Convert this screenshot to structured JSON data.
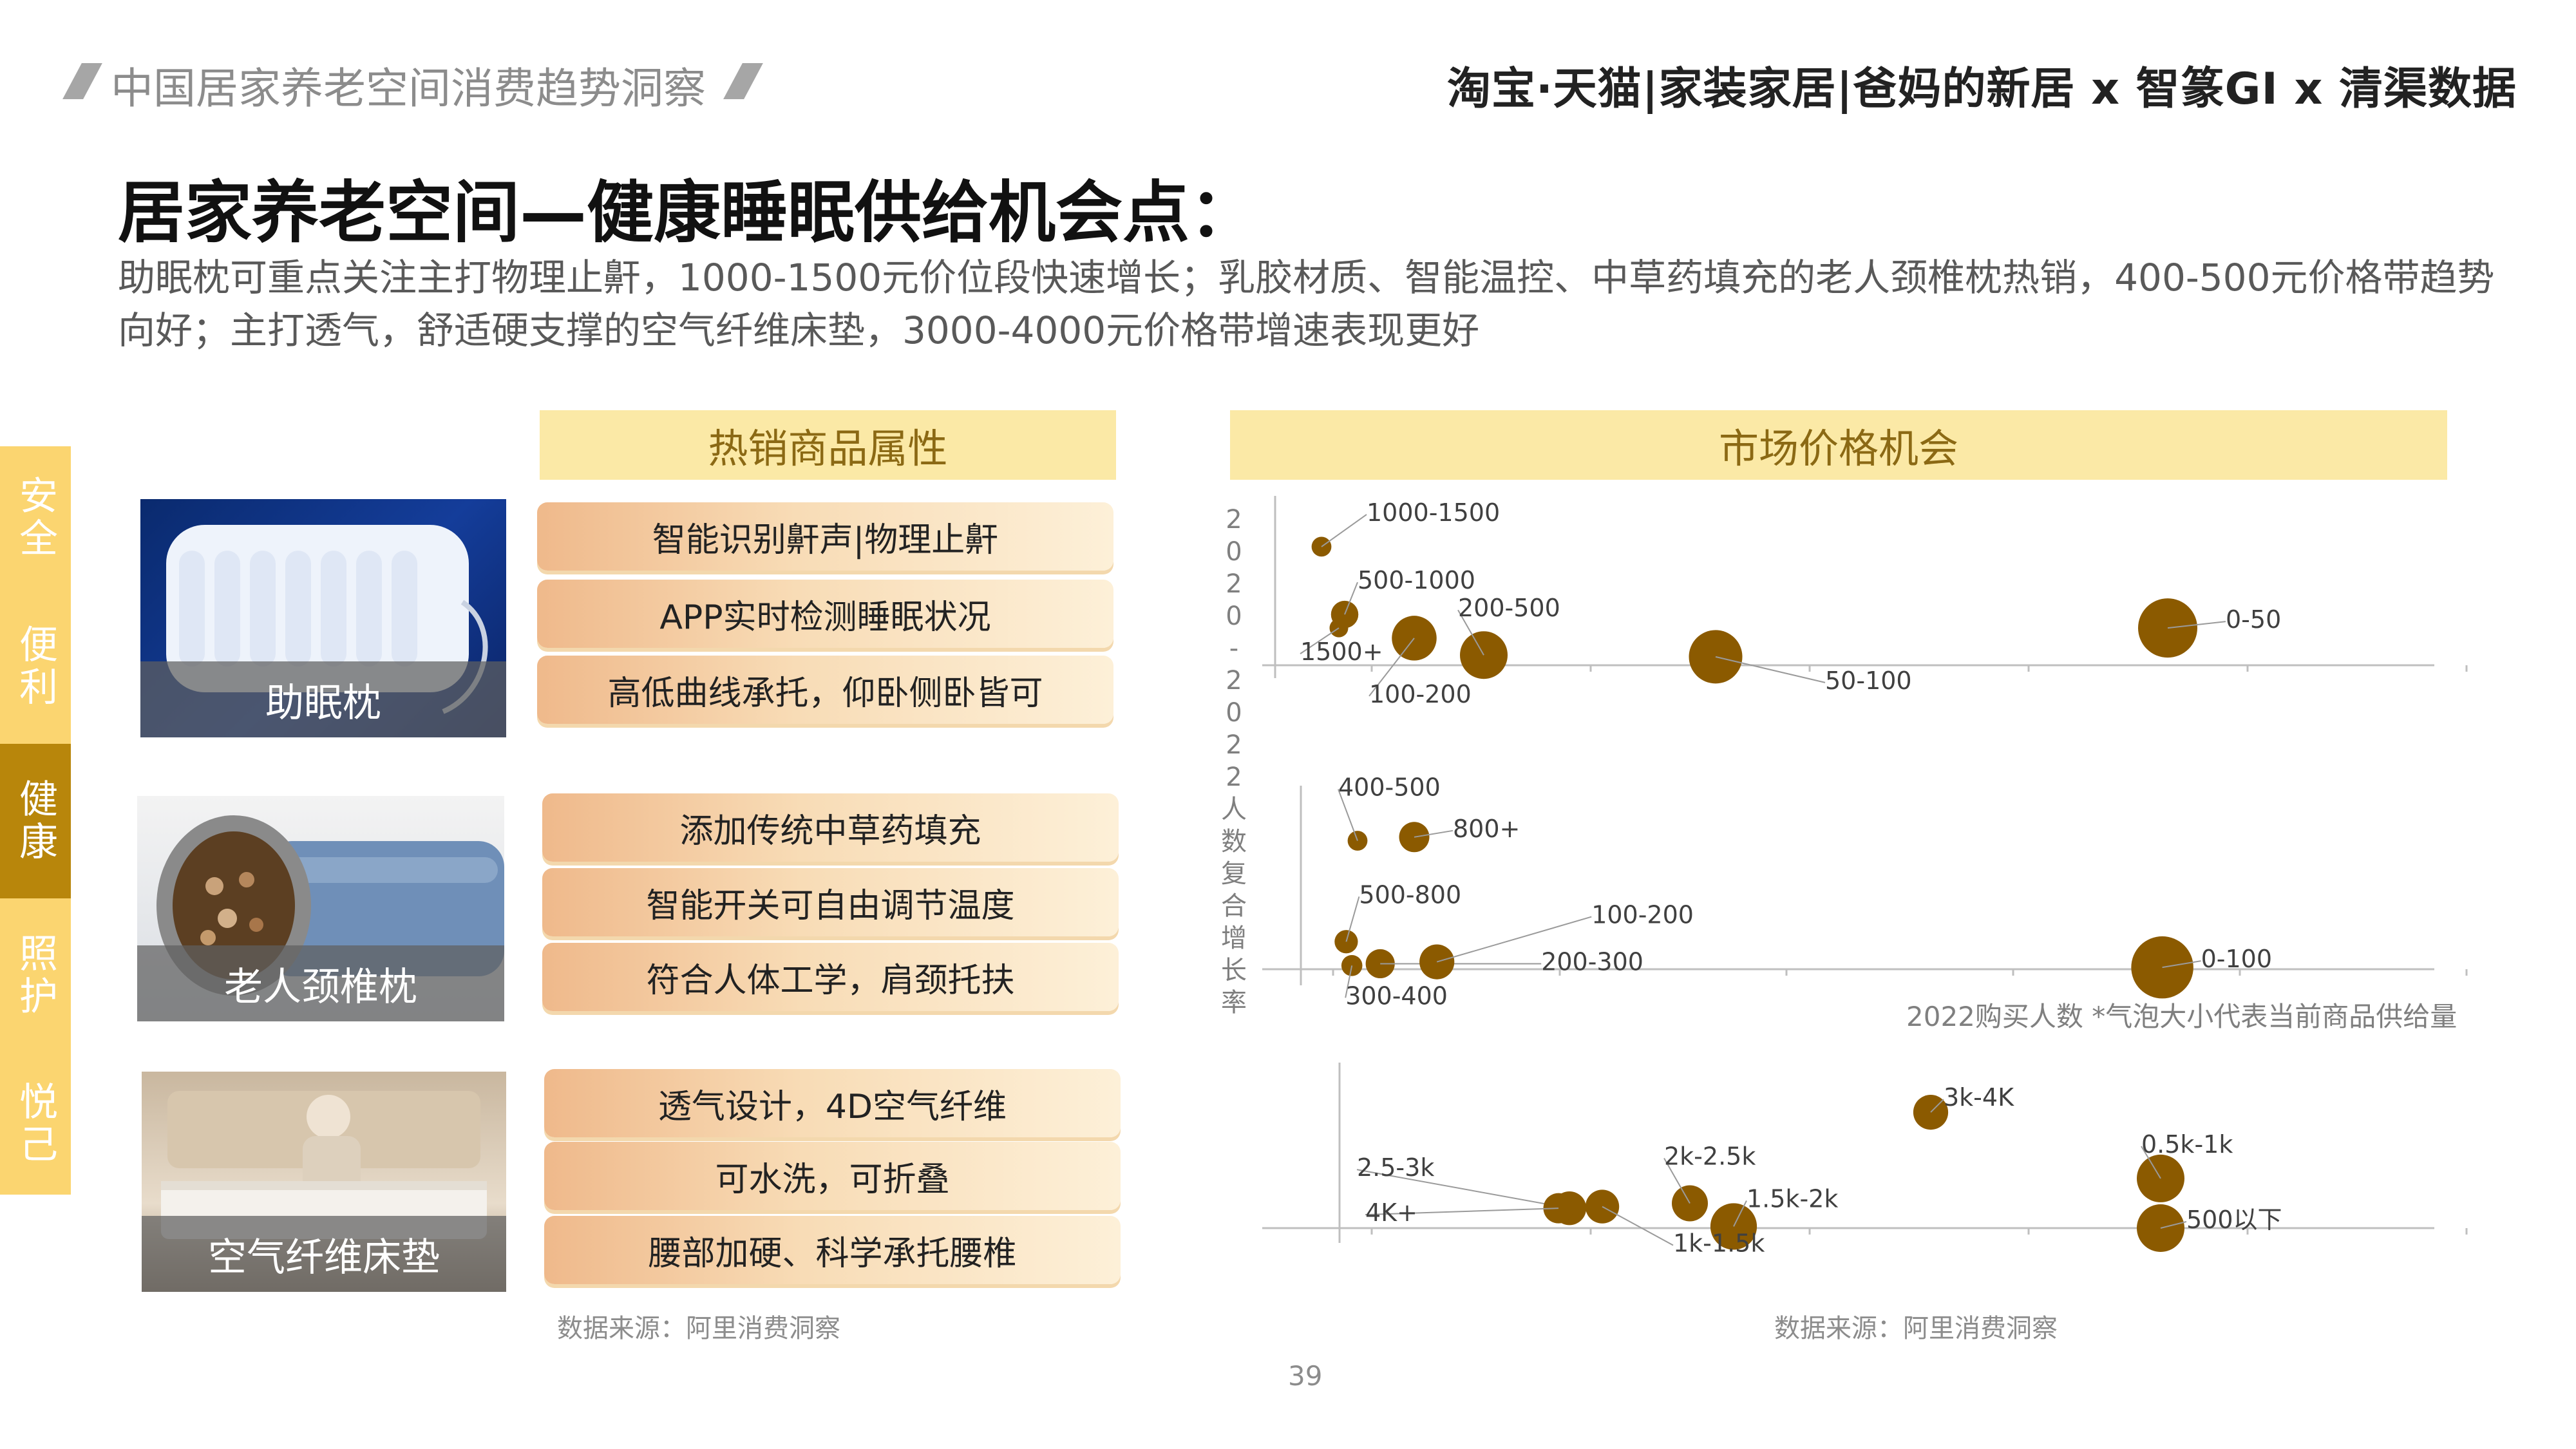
{
  "header": {
    "report_title": "中国居家养老空间消费趋势洞察",
    "brand_line": "淘宝·天猫|家装家居|爸妈的新居 x 智篆GI x 清渠数据"
  },
  "page_title": "居家养老空间—健康睡眠供给机会点：",
  "subtitle": "助眠枕可重点关注主打物理止鼾，1000-1500元价位段快速增长；乳胶材质、智能温控、中草药填充的老人颈椎枕热销，400-500元价格带趋势向好；主打透气，舒适硬支撑的空气纤维床垫，3000-4000元价格带增速表现更好",
  "side_tabs": [
    "安全",
    "便利",
    "健康",
    "照护",
    "悦己"
  ],
  "active_tab": "健康",
  "left_section": {
    "header": "热销商品属性",
    "products": [
      {
        "label": "助眠枕",
        "attributes": [
          "智能识别鼾声|物理止鼾",
          "APP实时检测睡眠状况",
          "高低曲线承托，仰卧侧卧皆可"
        ]
      },
      {
        "label": "老人颈椎枕",
        "attributes": [
          "添加传统中草药填充",
          "智能开关可自由调节温度",
          "符合人体工学，肩颈托扶"
        ]
      },
      {
        "label": "空气纤维床垫",
        "attributes": [
          "透气设计，4D空气纤维",
          "可水洗，可折叠",
          "腰部加硬、科学承托腰椎"
        ]
      }
    ],
    "source": "数据来源：阿里消费洞察"
  },
  "right_section": {
    "header": "市场价格机会",
    "source": "数据来源：阿里消费洞察"
  },
  "page_number": "39",
  "colors": {
    "bubble": "#8b5a00",
    "accent": "#b8860b",
    "tab": "#fbd570",
    "bar": "#fbe9a6"
  },
  "chart_data": {
    "type": "scatter",
    "ylabel": "2020-2022人数复合增长率",
    "xlabel": "2022购买人数",
    "note": "*气泡大小代表当前商品供给量",
    "panels": [
      {
        "product": "助眠枕",
        "points": [
          {
            "label": "1000-1500",
            "x": 0.04,
            "y": 0.7,
            "size": 0.12
          },
          {
            "label": "500-1000",
            "x": 0.06,
            "y": 0.3,
            "size": 0.25
          },
          {
            "label": "1500+",
            "x": 0.055,
            "y": 0.22,
            "size": 0.1
          },
          {
            "label": "100-200",
            "x": 0.12,
            "y": 0.16,
            "size": 0.55
          },
          {
            "label": "200-500",
            "x": 0.18,
            "y": 0.06,
            "size": 0.6
          },
          {
            "label": "50-100",
            "x": 0.38,
            "y": 0.05,
            "size": 0.7
          },
          {
            "label": "0-50",
            "x": 0.77,
            "y": 0.22,
            "size": 0.8
          }
        ]
      },
      {
        "product": "老人颈椎枕",
        "points": [
          {
            "label": "400-500",
            "x": 0.05,
            "y": 0.7,
            "size": 0.12
          },
          {
            "label": "800+",
            "x": 0.1,
            "y": 0.72,
            "size": 0.3
          },
          {
            "label": "500-800",
            "x": 0.04,
            "y": 0.15,
            "size": 0.18
          },
          {
            "label": "300-400",
            "x": 0.045,
            "y": 0.02,
            "size": 0.14
          },
          {
            "label": "200-300",
            "x": 0.07,
            "y": 0.03,
            "size": 0.28
          },
          {
            "label": "100-200",
            "x": 0.12,
            "y": 0.04,
            "size": 0.38
          },
          {
            "label": "0-100",
            "x": 0.76,
            "y": 0.01,
            "size": 0.85
          }
        ]
      },
      {
        "product": "空气纤维床垫",
        "points": [
          {
            "label": "3k-4K",
            "x": 0.54,
            "y": 0.7,
            "size": 0.38
          },
          {
            "label": "0.5k-1k",
            "x": 0.75,
            "y": 0.3,
            "size": 0.6
          },
          {
            "label": "500以下",
            "x": 0.75,
            "y": 0.0,
            "size": 0.6
          },
          {
            "label": "2k-2.5k",
            "x": 0.32,
            "y": 0.15,
            "size": 0.4
          },
          {
            "label": "1.5k-2k",
            "x": 0.36,
            "y": 0.01,
            "size": 0.58
          },
          {
            "label": "2.5-3k",
            "x": 0.21,
            "y": 0.12,
            "size": 0.36
          },
          {
            "label": "1k-1.5k",
            "x": 0.24,
            "y": 0.13,
            "size": 0.36
          },
          {
            "label": "4K+",
            "x": 0.2,
            "y": 0.12,
            "size": 0.3
          }
        ]
      }
    ]
  }
}
